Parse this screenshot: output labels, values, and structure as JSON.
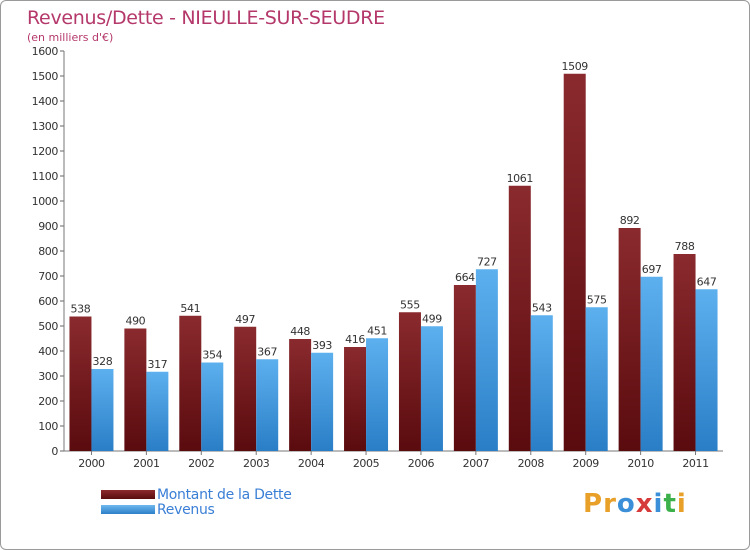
{
  "header": {
    "title": "Revenus/Dette - NIEULLE-SUR-SEUDRE",
    "subtitle": "(en milliers d'€)"
  },
  "legend": {
    "debt_label": "Montant de la Dette",
    "revenue_label": "Revenus"
  },
  "logo": {
    "text": "Proxiti"
  },
  "colors": {
    "debt": "#7a1c20",
    "revenue": "#4ea3e6",
    "title": "#b5386b",
    "legend_text": "#3a7fd6"
  },
  "chart_data": {
    "type": "bar",
    "title": "Revenus/Dette - NIEULLE-SUR-SEUDRE",
    "subtitle": "(en milliers d'€)",
    "categories": [
      "2000",
      "2001",
      "2002",
      "2003",
      "2004",
      "2005",
      "2006",
      "2007",
      "2008",
      "2009",
      "2010",
      "2011"
    ],
    "series": [
      {
        "name": "Montant de la Dette",
        "values": [
          538,
          490,
          541,
          497,
          448,
          416,
          555,
          664,
          1061,
          1509,
          892,
          788
        ]
      },
      {
        "name": "Revenus",
        "values": [
          328,
          317,
          354,
          367,
          393,
          451,
          499,
          727,
          543,
          575,
          697,
          647
        ]
      }
    ],
    "ylim": [
      0,
      1600
    ],
    "ytick_step": 100,
    "grid": false,
    "legend_position": "bottom-left"
  }
}
